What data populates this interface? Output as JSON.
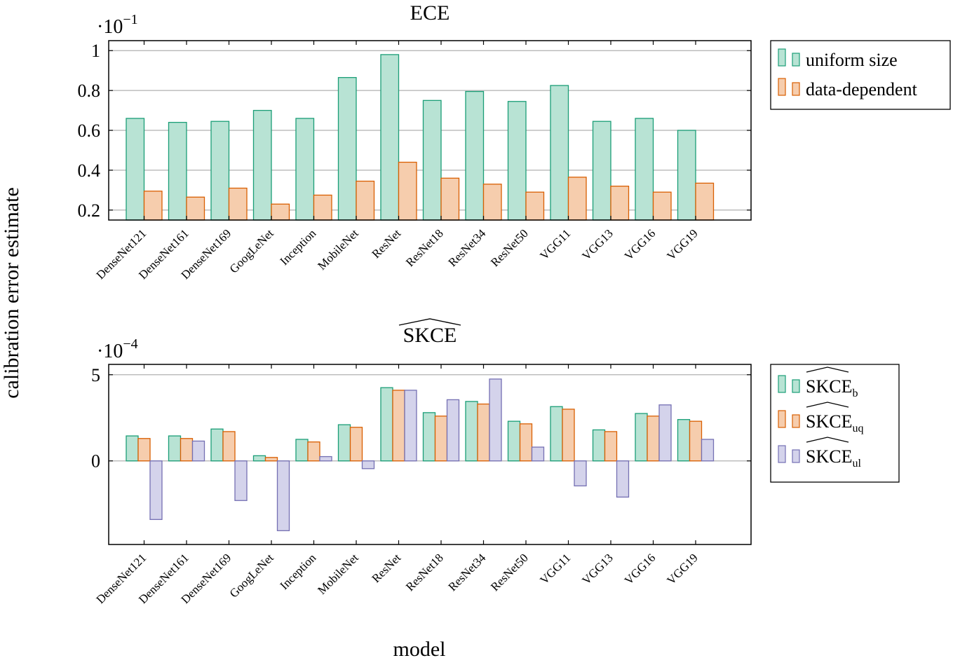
{
  "figure": {
    "ylabel": "calibration error estimate",
    "xlabel": "model"
  },
  "colors": {
    "green_fill": "#b8e3d4",
    "green_stroke": "#1b9e77",
    "orange_fill": "#f6cdad",
    "orange_stroke": "#d95f02",
    "purple_fill": "#d4d3eb",
    "purple_stroke": "#7570b3"
  },
  "chart_data": [
    {
      "type": "bar",
      "title": "ECE",
      "multiplier_base": "·10",
      "multiplier_exp": "−1",
      "categories": [
        "DenseNet121",
        "DenseNet161",
        "DenseNet169",
        "GoogLeNet",
        "Inception",
        "MobileNet",
        "ResNet",
        "ResNet18",
        "ResNet34",
        "ResNet50",
        "VGG11",
        "VGG13",
        "VGG16",
        "VGG19"
      ],
      "ylim": [
        0.15,
        1.05
      ],
      "yticks": [
        0.2,
        0.4,
        0.6,
        0.8,
        1
      ],
      "ytick_labels": [
        "0.2",
        "0.4",
        "0.6",
        "0.8",
        "1"
      ],
      "grid": true,
      "legend_position": "right",
      "series": [
        {
          "name": "uniform size",
          "color": "green",
          "values": [
            0.66,
            0.64,
            0.645,
            0.7,
            0.66,
            0.865,
            0.98,
            0.75,
            0.795,
            0.745,
            0.825,
            0.645,
            0.66,
            0.6
          ]
        },
        {
          "name": "data-dependent",
          "color": "orange",
          "values": [
            0.295,
            0.265,
            0.31,
            0.23,
            0.275,
            0.345,
            0.44,
            0.36,
            0.33,
            0.29,
            0.365,
            0.32,
            0.29,
            0.335
          ]
        }
      ]
    },
    {
      "type": "bar",
      "title": "SKCE",
      "multiplier_base": "·10",
      "multiplier_exp": "−4",
      "categories": [
        "DenseNet121",
        "DenseNet161",
        "DenseNet169",
        "GoogLeNet",
        "Inception",
        "MobileNet",
        "ResNet",
        "ResNet18",
        "ResNet34",
        "ResNet50",
        "VGG11",
        "VGG13",
        "VGG16",
        "VGG19"
      ],
      "ylim": [
        -4.85,
        5.6
      ],
      "yticks": [
        0,
        5
      ],
      "ytick_labels": [
        "0",
        "5"
      ],
      "grid": true,
      "legend_position": "right",
      "series": [
        {
          "name": "SKCE",
          "subscript": "b",
          "color": "green",
          "values": [
            1.45,
            1.45,
            1.85,
            0.3,
            1.25,
            2.1,
            4.25,
            2.8,
            3.45,
            2.3,
            3.15,
            1.8,
            2.75,
            2.4
          ]
        },
        {
          "name": "SKCE",
          "subscript": "uq",
          "color": "orange",
          "values": [
            1.3,
            1.3,
            1.7,
            0.2,
            1.1,
            1.95,
            4.1,
            2.6,
            3.3,
            2.15,
            3.0,
            1.7,
            2.6,
            2.3
          ]
        },
        {
          "name": "SKCE",
          "subscript": "ul",
          "color": "purple",
          "values": [
            -3.4,
            1.15,
            -2.3,
            -4.05,
            0.25,
            -0.45,
            4.1,
            3.55,
            4.75,
            0.8,
            -1.45,
            -2.1,
            3.25,
            1.25
          ]
        }
      ]
    }
  ]
}
